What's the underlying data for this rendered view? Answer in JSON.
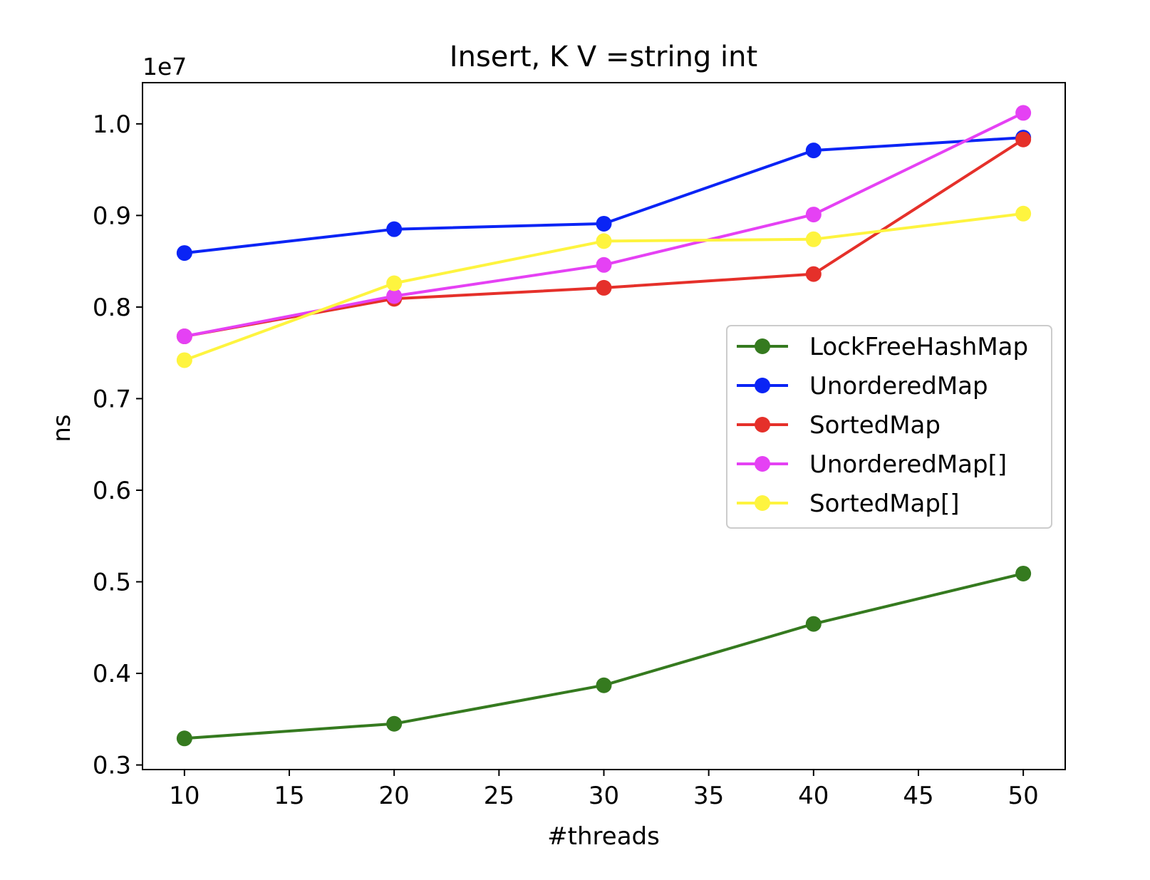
{
  "chart_data": {
    "type": "line",
    "title": "Insert, K V =string int",
    "xlabel": "#threads",
    "ylabel": "ns",
    "y_offset_label": "1e7",
    "xlim": [
      8,
      52
    ],
    "ylim": [
      0.295,
      1.045
    ],
    "x_ticks": [
      10,
      15,
      20,
      25,
      30,
      35,
      40,
      45,
      50
    ],
    "y_ticks": [
      0.3,
      0.4,
      0.5,
      0.6,
      0.7,
      0.8,
      0.9,
      1.0
    ],
    "x_tick_labels": [
      "10",
      "15",
      "20",
      "25",
      "30",
      "35",
      "40",
      "45",
      "50"
    ],
    "y_tick_labels": [
      "0.3",
      "0.4",
      "0.5",
      "0.6",
      "0.7",
      "0.8",
      "0.9",
      "1.0"
    ],
    "x": [
      10,
      20,
      30,
      40,
      50
    ],
    "legend_position": "center-right",
    "grid": false,
    "series": [
      {
        "name": "LockFreeHashMap",
        "color": "#357a1f",
        "values": [
          0.329,
          0.345,
          0.387,
          0.454,
          0.509
        ]
      },
      {
        "name": "UnorderedMap",
        "color": "#0a24f5",
        "values": [
          0.859,
          0.885,
          0.891,
          0.971,
          0.985
        ]
      },
      {
        "name": "SortedMap",
        "color": "#e5302a",
        "values": [
          0.768,
          0.809,
          0.821,
          0.836,
          0.983
        ]
      },
      {
        "name": "UnorderedMap[]",
        "color": "#e541f4",
        "values": [
          0.768,
          0.812,
          0.846,
          0.901,
          1.012
        ]
      },
      {
        "name": "SortedMap[]",
        "color": "#fef43f",
        "values": [
          0.742,
          0.826,
          0.872,
          0.874,
          0.902
        ]
      }
    ]
  }
}
